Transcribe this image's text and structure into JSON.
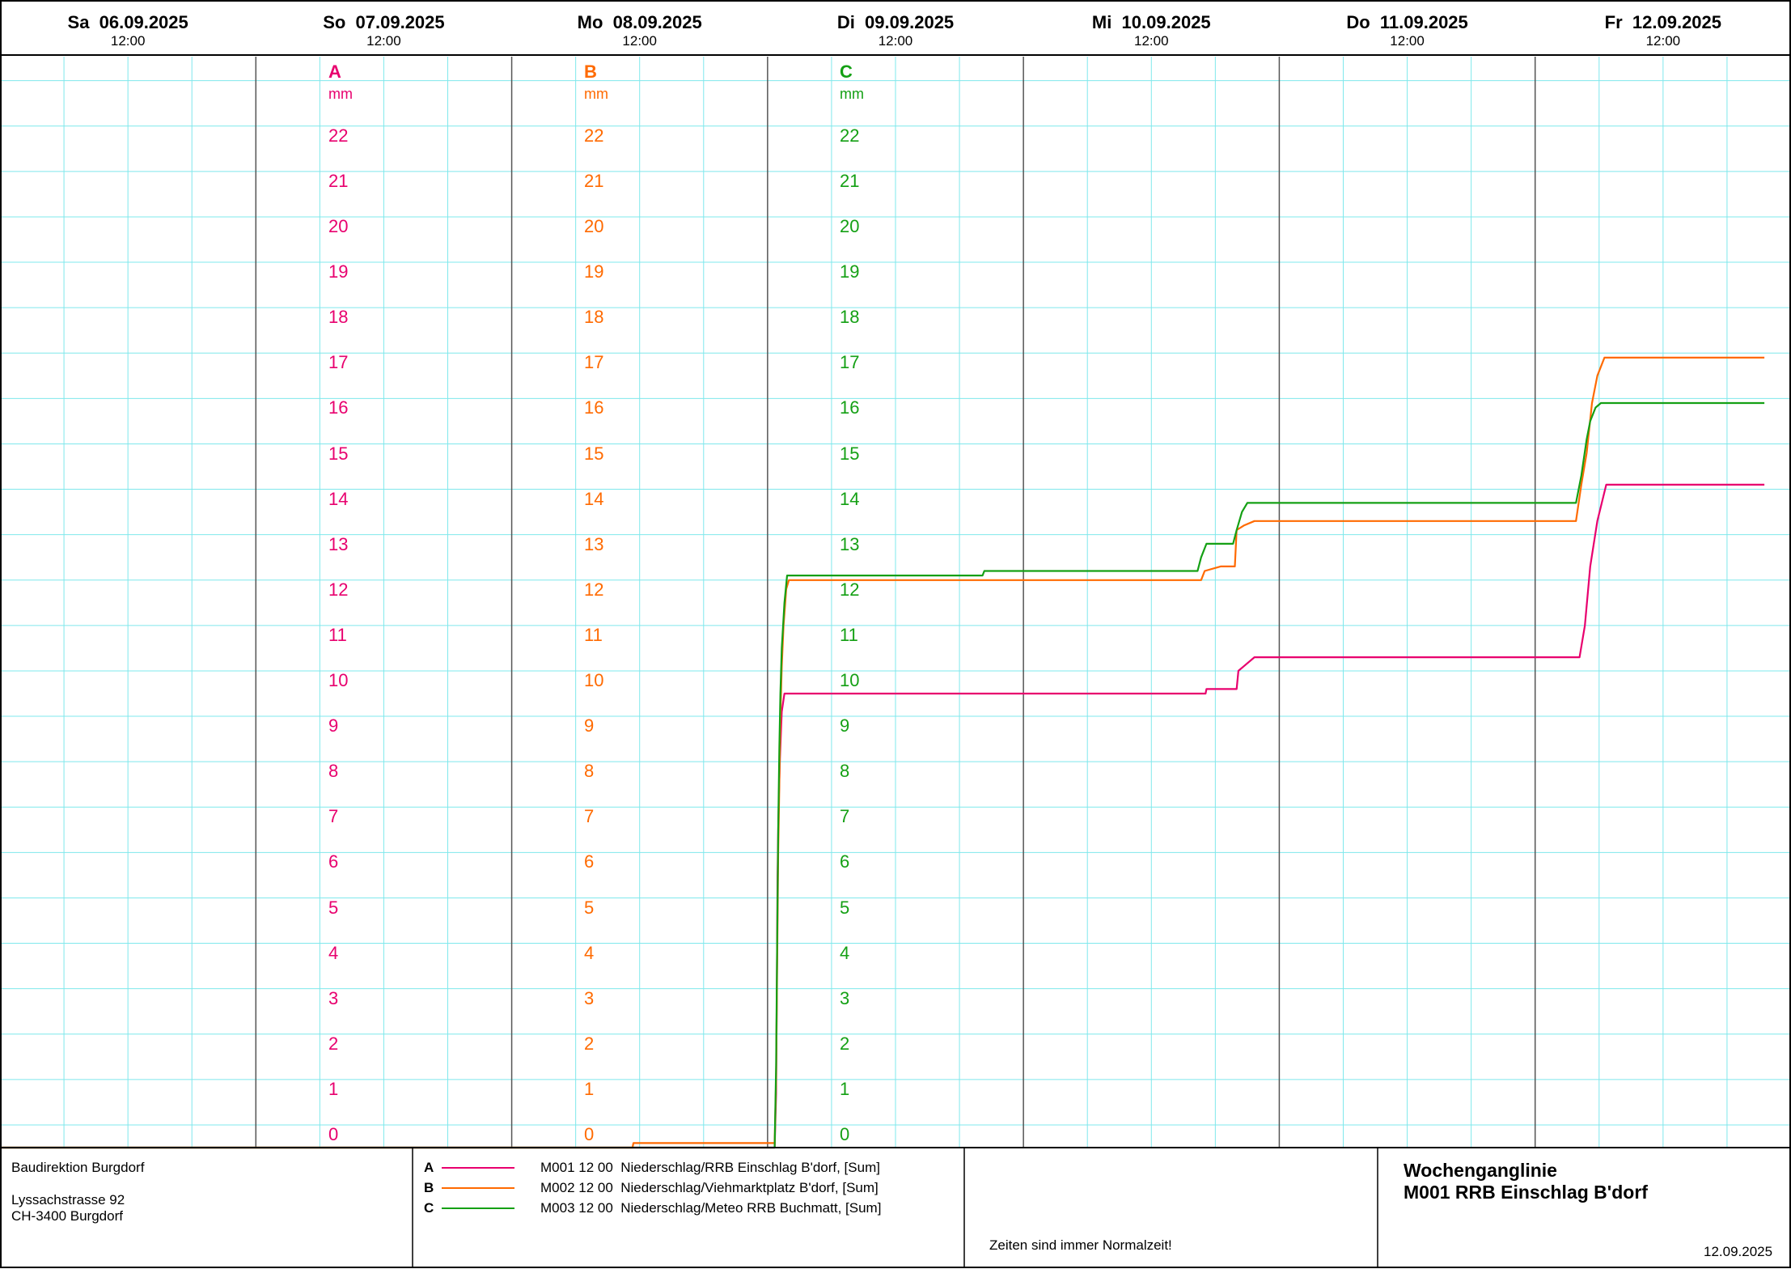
{
  "days": [
    {
      "day": "Sa",
      "date": "06.09.2025",
      "time": "12:00"
    },
    {
      "day": "So",
      "date": "07.09.2025",
      "time": "12:00"
    },
    {
      "day": "Mo",
      "date": "08.09.2025",
      "time": "12:00"
    },
    {
      "day": "Di",
      "date": "09.09.2025",
      "time": "12:00"
    },
    {
      "day": "Mi",
      "date": "10.09.2025",
      "time": "12:00"
    },
    {
      "day": "Do",
      "date": "11.09.2025",
      "time": "12:00"
    },
    {
      "day": "Fr",
      "date": "12.09.2025",
      "time": "12:00"
    }
  ],
  "axes": [
    {
      "letter": "A",
      "unit": "mm",
      "color": "#e8006e"
    },
    {
      "letter": "B",
      "unit": "mm",
      "color": "#ff6a00"
    },
    {
      "letter": "C",
      "unit": "mm",
      "color": "#14a014"
    }
  ],
  "footer": {
    "org": "Baudirektion Burgdorf",
    "street": "Lyssachstrasse 92",
    "city": "CH-3400 Burgdorf",
    "note": "Zeiten sind immer Normalzeit!",
    "title_line1": "Wochenganglinie",
    "title_line2": "M001 RRB Einschlag B'dorf",
    "date": "12.09.2025"
  },
  "legend": [
    {
      "key": "A",
      "code": "M001 12 00",
      "label": "Niederschlag/RRB Einschlag B'dorf, [Sum]",
      "color": "#e8006e"
    },
    {
      "key": "B",
      "code": "M002 12 00",
      "label": "Niederschlag/Viehmarktplatz B'dorf, [Sum]",
      "color": "#ff6a00"
    },
    {
      "key": "C",
      "code": "M003 12 00",
      "label": "Niederschlag/Meteo RRB Buchmatt, [Sum]",
      "color": "#14a014"
    }
  ],
  "colors": {
    "grid": "#7fe8ec",
    "daygrid": "#555555",
    "frame": "#000000"
  },
  "chart_data": {
    "type": "line",
    "xlabel": "",
    "ylabel": "mm",
    "xlim": [
      "2025-09-06T00:00",
      "2025-09-13T00:00"
    ],
    "ylim": [
      0,
      22
    ],
    "y_ticks": [
      0,
      1,
      2,
      3,
      4,
      5,
      6,
      7,
      8,
      9,
      10,
      11,
      12,
      13,
      14,
      15,
      16,
      17,
      18,
      19,
      20,
      21,
      22
    ],
    "grid": true,
    "series": [
      {
        "key": "A",
        "points": [
          [
            "2025-09-06T00:00",
            0
          ],
          [
            "2025-09-09T00:40",
            0
          ],
          [
            "2025-09-09T00:48",
            1.2
          ],
          [
            "2025-09-09T00:52",
            3.5
          ],
          [
            "2025-09-09T00:56",
            6.0
          ],
          [
            "2025-09-09T01:00",
            7.0
          ],
          [
            "2025-09-09T01:04",
            7.8
          ],
          [
            "2025-09-09T01:10",
            8.6
          ],
          [
            "2025-09-09T01:20",
            9.6
          ],
          [
            "2025-09-09T01:35",
            10.0
          ],
          [
            "2025-09-10T17:05",
            10.0
          ],
          [
            "2025-09-10T17:10",
            10.1
          ],
          [
            "2025-09-10T20:00",
            10.1
          ],
          [
            "2025-09-10T20:10",
            10.5
          ],
          [
            "2025-09-10T20:40",
            10.6
          ],
          [
            "2025-09-10T21:40",
            10.8
          ],
          [
            "2025-09-12T04:10",
            10.8
          ],
          [
            "2025-09-12T04:40",
            11.5
          ],
          [
            "2025-09-12T05:10",
            12.8
          ],
          [
            "2025-09-12T05:50",
            13.8
          ],
          [
            "2025-09-12T06:40",
            14.6
          ],
          [
            "2025-09-12T21:30",
            14.6
          ]
        ]
      },
      {
        "key": "B",
        "points": [
          [
            "2025-09-06T00:00",
            0
          ],
          [
            "2025-09-08T11:20",
            0
          ],
          [
            "2025-09-08T11:25",
            0.1
          ],
          [
            "2025-09-09T00:40",
            0.1
          ],
          [
            "2025-09-09T00:48",
            1.5
          ],
          [
            "2025-09-09T00:54",
            4.0
          ],
          [
            "2025-09-09T01:00",
            6.5
          ],
          [
            "2025-09-09T01:06",
            8.0
          ],
          [
            "2025-09-09T01:12",
            9.5
          ],
          [
            "2025-09-09T01:20",
            10.6
          ],
          [
            "2025-09-09T01:30",
            11.5
          ],
          [
            "2025-09-09T01:45",
            12.3
          ],
          [
            "2025-09-09T02:00",
            12.5
          ],
          [
            "2025-09-10T16:40",
            12.5
          ],
          [
            "2025-09-10T17:00",
            12.7
          ],
          [
            "2025-09-10T18:30",
            12.8
          ],
          [
            "2025-09-10T19:50",
            12.8
          ],
          [
            "2025-09-10T20:00",
            13.6
          ],
          [
            "2025-09-10T20:40",
            13.7
          ],
          [
            "2025-09-10T21:40",
            13.8
          ],
          [
            "2025-09-12T03:50",
            13.8
          ],
          [
            "2025-09-12T04:20",
            14.6
          ],
          [
            "2025-09-12T04:50",
            15.3
          ],
          [
            "2025-09-12T05:20",
            16.4
          ],
          [
            "2025-09-12T05:50",
            17.0
          ],
          [
            "2025-09-12T06:30",
            17.4
          ],
          [
            "2025-09-12T21:30",
            17.4
          ]
        ]
      },
      {
        "key": "C",
        "points": [
          [
            "2025-09-06T00:00",
            0
          ],
          [
            "2025-09-09T00:40",
            0
          ],
          [
            "2025-09-09T00:48",
            1.8
          ],
          [
            "2025-09-09T00:54",
            4.5
          ],
          [
            "2025-09-09T01:00",
            7.0
          ],
          [
            "2025-09-09T01:06",
            8.8
          ],
          [
            "2025-09-09T01:12",
            10.0
          ],
          [
            "2025-09-09T01:20",
            11.0
          ],
          [
            "2025-09-09T01:35",
            12.0
          ],
          [
            "2025-09-09T01:50",
            12.6
          ],
          [
            "2025-09-09T20:10",
            12.6
          ],
          [
            "2025-09-09T20:20",
            12.7
          ],
          [
            "2025-09-10T16:20",
            12.7
          ],
          [
            "2025-09-10T16:40",
            13.0
          ],
          [
            "2025-09-10T17:10",
            13.3
          ],
          [
            "2025-09-10T19:40",
            13.3
          ],
          [
            "2025-09-10T20:00",
            13.6
          ],
          [
            "2025-09-10T20:30",
            14.0
          ],
          [
            "2025-09-10T21:00",
            14.2
          ],
          [
            "2025-09-12T03:50",
            14.2
          ],
          [
            "2025-09-12T04:20",
            14.8
          ],
          [
            "2025-09-12T04:50",
            15.6
          ],
          [
            "2025-09-12T05:10",
            16.0
          ],
          [
            "2025-09-12T05:40",
            16.3
          ],
          [
            "2025-09-12T06:10",
            16.4
          ],
          [
            "2025-09-12T21:30",
            16.4
          ]
        ]
      }
    ]
  }
}
